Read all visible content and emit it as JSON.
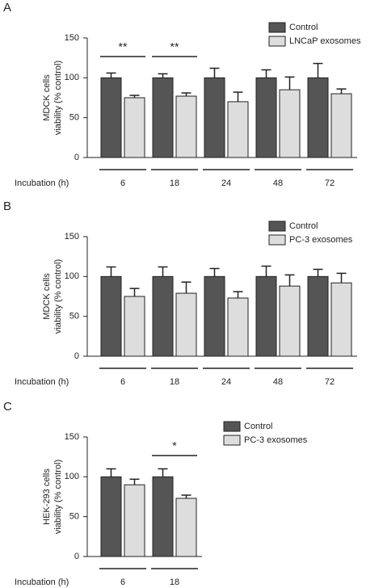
{
  "chart_data": [
    {
      "type": "bar",
      "panel_label": "A",
      "ylabel": [
        "MDCK cells",
        "viability (% control)"
      ],
      "xlabel": "Incubation (h)",
      "categories": [
        "6",
        "18",
        "24",
        "48",
        "72"
      ],
      "series": [
        {
          "name": "Control",
          "color": "#555555",
          "values": [
            100,
            100,
            100,
            100,
            100
          ],
          "errors": [
            6,
            5,
            12,
            10,
            18
          ]
        },
        {
          "name": "LNCaP exosomes",
          "color": "#dddddd",
          "values": [
            75,
            77,
            70,
            85,
            80
          ],
          "errors": [
            3,
            4,
            12,
            16,
            6
          ]
        }
      ],
      "ylim": [
        0,
        150
      ],
      "yticks": [
        0,
        50,
        100,
        150
      ],
      "legend": "top-right",
      "annotations": [
        {
          "text": "**",
          "category": "6"
        },
        {
          "text": "**",
          "category": "18"
        }
      ]
    },
    {
      "type": "bar",
      "panel_label": "B",
      "ylabel": [
        "MDCK cells",
        "viability (% control)"
      ],
      "xlabel": "Incubation (h)",
      "categories": [
        "6",
        "18",
        "24",
        "48",
        "72"
      ],
      "series": [
        {
          "name": "Control",
          "color": "#555555",
          "values": [
            100,
            100,
            100,
            100,
            100
          ],
          "errors": [
            12,
            12,
            10,
            13,
            9
          ]
        },
        {
          "name": "PC-3 exosomes",
          "color": "#dddddd",
          "values": [
            75,
            79,
            73,
            88,
            92
          ],
          "errors": [
            10,
            14,
            8,
            14,
            12
          ]
        }
      ],
      "ylim": [
        0,
        150
      ],
      "yticks": [
        0,
        50,
        100,
        150
      ],
      "legend": "top-right",
      "annotations": []
    },
    {
      "type": "bar",
      "panel_label": "C",
      "ylabel": [
        "HEK-293 cells",
        "viability (% control)"
      ],
      "xlabel": "Incubation (h)",
      "categories": [
        "6",
        "18"
      ],
      "series": [
        {
          "name": "Control",
          "color": "#555555",
          "values": [
            100,
            100
          ],
          "errors": [
            10,
            10
          ]
        },
        {
          "name": "PC-3 exosomes",
          "color": "#dddddd",
          "values": [
            90,
            73
          ],
          "errors": [
            7,
            4
          ]
        }
      ],
      "ylim": [
        0,
        150
      ],
      "yticks": [
        0,
        50,
        100,
        150
      ],
      "legend": "top-right",
      "annotations": [
        {
          "text": "*",
          "category": "18"
        }
      ]
    }
  ]
}
